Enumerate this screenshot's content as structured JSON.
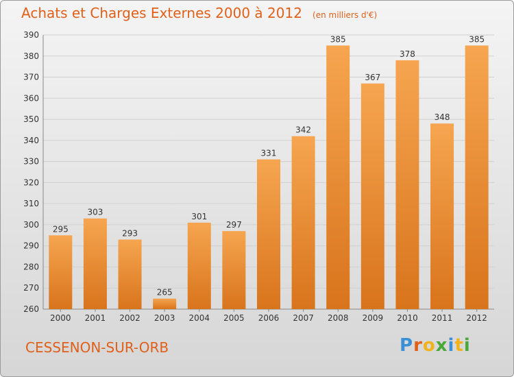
{
  "header": {
    "title": "Achats et Charges Externes 2000 à 2012",
    "subtitle": "(en milliers d'€)"
  },
  "footer": {
    "place": "CESSENON-SUR-ORB",
    "logo_letters": [
      "P",
      "r",
      "o",
      "x",
      "i",
      "t",
      "i"
    ],
    "logo_colors": [
      "#3a8fd6",
      "#e0601a",
      "#f2b21b",
      "#4aa83a",
      "#3a8fd6",
      "#f2b21b",
      "#4aa83a"
    ]
  },
  "colors": {
    "bar_light": "#f6a550",
    "bar_dark": "#d8741c",
    "grid": "#d0d0d0"
  },
  "chart_data": {
    "type": "bar",
    "title": "Achats et Charges Externes 2000 à 2012",
    "categories": [
      "2000",
      "2001",
      "2002",
      "2003",
      "2004",
      "2005",
      "2006",
      "2007",
      "2008",
      "2009",
      "2010",
      "2011",
      "2012"
    ],
    "values": [
      295,
      303,
      293,
      265,
      301,
      297,
      331,
      342,
      385,
      367,
      378,
      348,
      385
    ],
    "ylim": [
      260,
      390
    ],
    "yticks": [
      260,
      270,
      280,
      290,
      300,
      310,
      320,
      330,
      340,
      350,
      360,
      370,
      380,
      390
    ],
    "grid": true,
    "legend": "none"
  }
}
